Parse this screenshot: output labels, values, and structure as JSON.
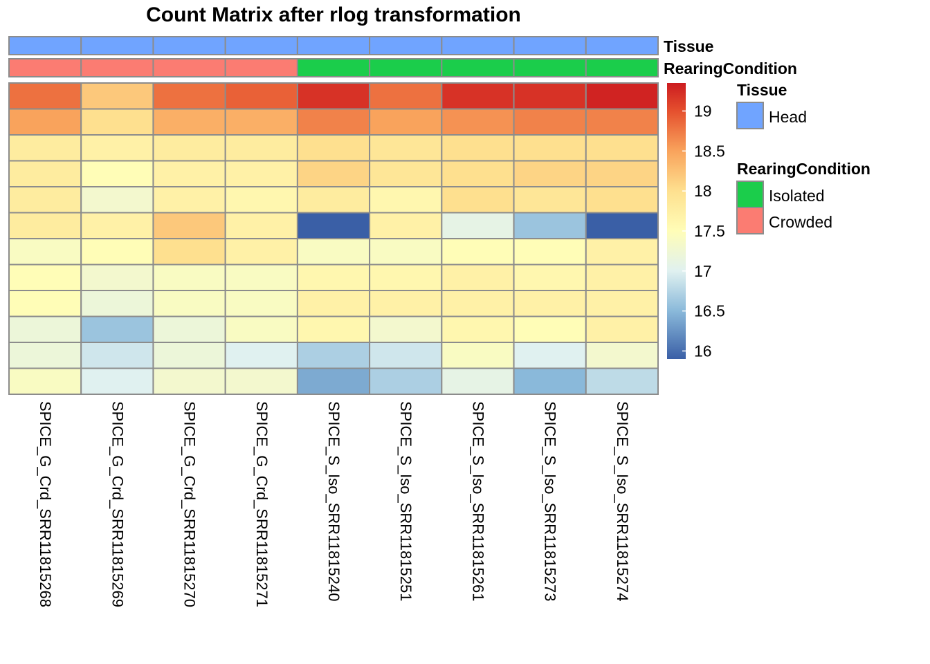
{
  "chart_data": {
    "type": "heatmap",
    "title": "Count Matrix after rlog transformation",
    "columns": [
      "SPICE_G_Crd_SRR11815268",
      "SPICE_G_Crd_SRR11815269",
      "SPICE_G_Crd_SRR11815270",
      "SPICE_G_Crd_SRR11815271",
      "SPICE_S_Iso_SRR11815240",
      "SPICE_S_Iso_SRR11815251",
      "SPICE_S_Iso_SRR11815261",
      "SPICE_S_Iso_SRR11815273",
      "SPICE_S_Iso_SRR11815274"
    ],
    "annotations": [
      {
        "name": "Tissue",
        "values": [
          "Head",
          "Head",
          "Head",
          "Head",
          "Head",
          "Head",
          "Head",
          "Head",
          "Head"
        ]
      },
      {
        "name": "RearingCondition",
        "values": [
          "Crowded",
          "Crowded",
          "Crowded",
          "Crowded",
          "Isolated",
          "Isolated",
          "Isolated",
          "Isolated",
          "Isolated"
        ]
      }
    ],
    "values": [
      [
        18.8,
        18.2,
        18.8,
        18.9,
        19.2,
        18.8,
        19.2,
        19.2,
        19.3
      ],
      [
        18.5,
        18.0,
        18.4,
        18.4,
        18.7,
        18.5,
        18.6,
        18.7,
        18.7
      ],
      [
        17.8,
        17.7,
        17.8,
        17.8,
        18.0,
        17.9,
        18.0,
        18.0,
        18.0
      ],
      [
        17.8,
        17.5,
        17.7,
        17.7,
        18.1,
        17.9,
        18.0,
        18.1,
        18.1
      ],
      [
        17.8,
        17.3,
        17.7,
        17.6,
        17.8,
        17.6,
        18.0,
        17.9,
        18.0
      ],
      [
        17.8,
        17.7,
        18.2,
        17.7,
        15.9,
        17.7,
        17.1,
        16.6,
        15.9
      ],
      [
        17.4,
        17.5,
        18.0,
        17.7,
        17.4,
        17.4,
        17.5,
        17.5,
        17.7
      ],
      [
        17.5,
        17.3,
        17.4,
        17.4,
        17.6,
        17.6,
        17.7,
        17.6,
        17.7
      ],
      [
        17.5,
        17.2,
        17.4,
        17.4,
        17.7,
        17.7,
        17.7,
        17.7,
        17.7
      ],
      [
        17.2,
        16.6,
        17.2,
        17.4,
        17.6,
        17.3,
        17.6,
        17.5,
        17.7
      ],
      [
        17.2,
        16.9,
        17.2,
        17.0,
        16.7,
        16.9,
        17.4,
        17.0,
        17.3
      ],
      [
        17.4,
        17.0,
        17.3,
        17.3,
        16.4,
        16.7,
        17.1,
        16.5,
        16.8
      ]
    ],
    "color_scale": {
      "min": 15.9,
      "max": 19.35,
      "stops": [
        {
          "v": 15.9,
          "c": "#3a5fa6"
        },
        {
          "v": 16.5,
          "c": "#8ab9da"
        },
        {
          "v": 17.0,
          "c": "#e0f1f0"
        },
        {
          "v": 17.5,
          "c": "#fffdb7"
        },
        {
          "v": 18.0,
          "c": "#fee08f"
        },
        {
          "v": 18.5,
          "c": "#f9a35c"
        },
        {
          "v": 19.0,
          "c": "#e5502e"
        },
        {
          "v": 19.35,
          "c": "#cc1c20"
        }
      ],
      "ticks": [
        19,
        18.5,
        18,
        17.5,
        17,
        16.5,
        16
      ]
    },
    "legends": [
      {
        "title": "Tissue",
        "entries": [
          {
            "label": "Head",
            "color": "#70a4ff"
          }
        ]
      },
      {
        "title": "RearingCondition",
        "entries": [
          {
            "label": "Isolated",
            "color": "#1bcd4b"
          },
          {
            "label": "Crowded",
            "color": "#fb7c72"
          }
        ]
      }
    ],
    "annotation_colors": {
      "Head": "#70a4ff",
      "Isolated": "#1bcd4b",
      "Crowded": "#fb7c72"
    }
  }
}
